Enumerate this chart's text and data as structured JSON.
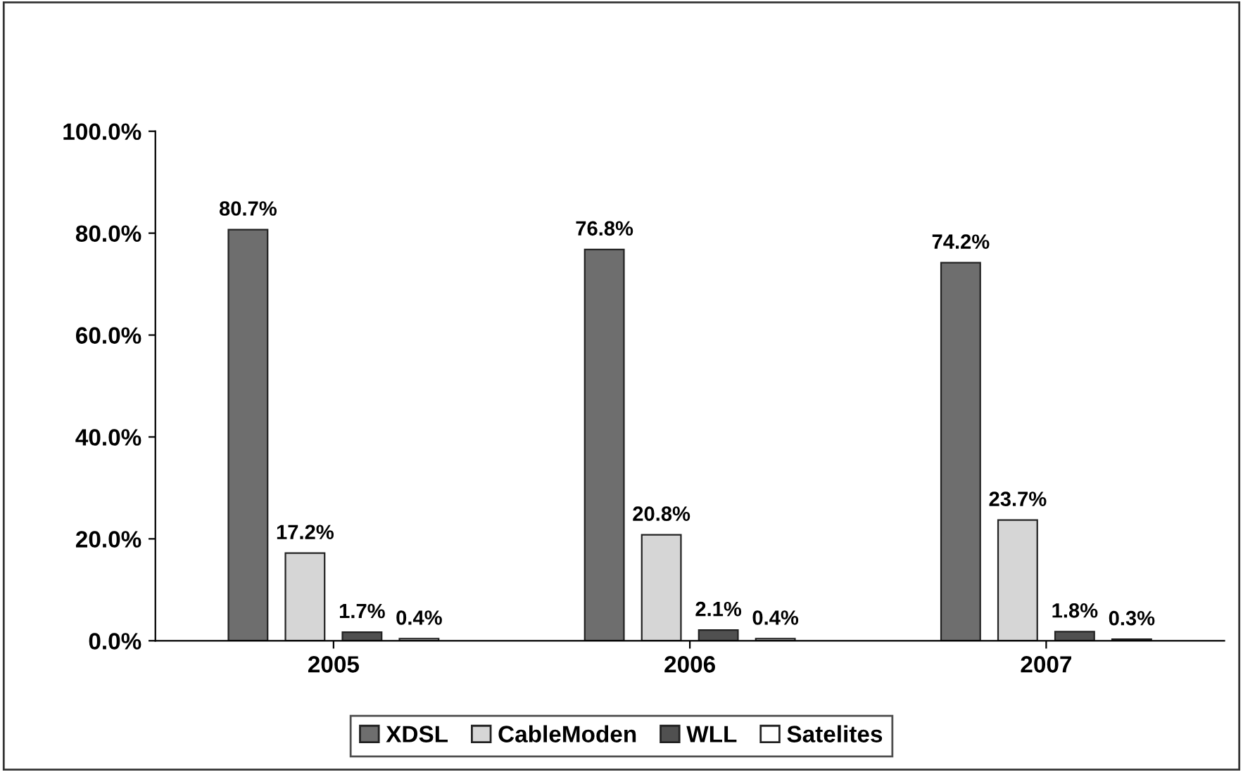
{
  "chart_data": {
    "type": "bar",
    "categories": [
      "2005",
      "2006",
      "2007"
    ],
    "series": [
      {
        "name": "XDSL",
        "color": "#6e6e6e",
        "values": [
          80.7,
          76.8,
          74.2
        ],
        "value_labels": [
          "80.7%",
          "76.8%",
          "74.2%"
        ]
      },
      {
        "name": "CableModen",
        "color": "#d6d6d6",
        "values": [
          17.2,
          20.8,
          23.7
        ],
        "value_labels": [
          "17.2%",
          "20.8%",
          "23.7%"
        ]
      },
      {
        "name": "WLL",
        "color": "#505050",
        "values": [
          1.7,
          2.1,
          1.8
        ],
        "value_labels": [
          "1.7%",
          "2.1%",
          "1.8%"
        ]
      },
      {
        "name": "Satelites",
        "color": "#ffffff",
        "values": [
          0.4,
          0.4,
          0.3
        ],
        "value_labels": [
          "0.4%",
          "0.4%",
          "0.3%"
        ]
      }
    ],
    "ylim": [
      0,
      100
    ],
    "yticks": [
      {
        "value": 0,
        "label": "0.0%"
      },
      {
        "value": 20,
        "label": "20.0%"
      },
      {
        "value": 40,
        "label": "40.0%"
      },
      {
        "value": 60,
        "label": "60.0%"
      },
      {
        "value": 80,
        "label": "80.0%"
      },
      {
        "value": 100,
        "label": "100.0%"
      }
    ],
    "grid": false,
    "legend": "bottom"
  }
}
